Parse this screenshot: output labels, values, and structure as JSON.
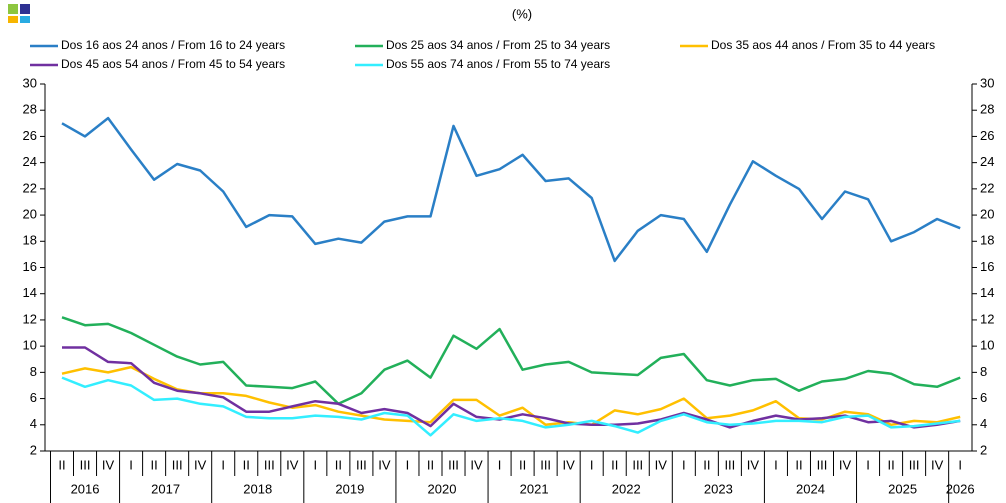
{
  "chart_data": {
    "type": "line",
    "subtitle": "(%)",
    "categories": [
      "II",
      "III",
      "IV",
      "I",
      "II",
      "III",
      "IV",
      "I",
      "II",
      "III",
      "IV",
      "I",
      "II",
      "III",
      "IV",
      "I",
      "II",
      "III",
      "IV",
      "I",
      "II",
      "III",
      "IV",
      "I",
      "II",
      "III",
      "IV",
      "I",
      "II",
      "III",
      "IV",
      "I",
      "II",
      "III",
      "IV",
      "I",
      "II",
      "III",
      "IV",
      "I"
    ],
    "years": [
      "2016",
      "2017",
      "2018",
      "2019",
      "2020",
      "2021",
      "2022",
      "2023",
      "2024",
      "2025",
      "2026"
    ],
    "series": [
      {
        "name": "Dos 16 aos 24 anos / From 16 to 24 years",
        "color": "#2a7fc6",
        "values": [
          27.0,
          26.0,
          27.4,
          25.0,
          22.7,
          23.9,
          23.4,
          21.8,
          19.1,
          20.0,
          19.9,
          17.8,
          18.2,
          17.9,
          19.5,
          19.9,
          19.9,
          26.8,
          23.0,
          23.5,
          24.6,
          22.6,
          22.8,
          21.3,
          16.5,
          18.8,
          20.0,
          19.7,
          17.2,
          20.8,
          24.1,
          23.0,
          22.0,
          19.7,
          21.8,
          21.2,
          18.0,
          18.7,
          19.7,
          19.0
        ]
      },
      {
        "name": "Dos 25 aos 34 anos / From 25 to 34 years",
        "color": "#22b05a",
        "values": [
          12.2,
          11.6,
          11.7,
          11.0,
          10.1,
          9.2,
          8.6,
          8.8,
          7.0,
          6.9,
          6.8,
          7.3,
          5.6,
          6.4,
          8.2,
          8.9,
          7.6,
          10.8,
          9.8,
          11.3,
          8.2,
          8.6,
          8.8,
          8.0,
          7.9,
          7.8,
          9.1,
          9.4,
          7.4,
          7.0,
          7.4,
          7.5,
          6.6,
          7.3,
          7.5,
          8.1,
          7.9,
          7.1,
          6.9,
          7.6
        ]
      },
      {
        "name": "Dos 35 aos 44 anos / From 35 to 44 years",
        "color": "#ffc000",
        "values": [
          7.9,
          8.3,
          8.0,
          8.4,
          7.5,
          6.7,
          6.4,
          6.4,
          6.2,
          5.7,
          5.3,
          5.5,
          5.0,
          4.7,
          4.4,
          4.3,
          4.2,
          5.9,
          5.9,
          4.7,
          5.3,
          4.0,
          4.2,
          4.0,
          5.1,
          4.8,
          5.2,
          6.0,
          4.5,
          4.7,
          5.1,
          5.8,
          4.5,
          4.4,
          5.0,
          4.8,
          4.0,
          4.3,
          4.2,
          4.6
        ]
      },
      {
        "name": "Dos 45 aos 54 anos / From 45 to 54 years",
        "color": "#7030a0",
        "values": [
          9.9,
          9.9,
          8.8,
          8.7,
          7.2,
          6.6,
          6.4,
          6.1,
          5.0,
          5.0,
          5.4,
          5.8,
          5.6,
          4.9,
          5.2,
          4.9,
          3.9,
          5.6,
          4.6,
          4.4,
          4.8,
          4.5,
          4.1,
          4.0,
          4.0,
          4.1,
          4.4,
          4.9,
          4.4,
          3.8,
          4.3,
          4.7,
          4.4,
          4.5,
          4.7,
          4.2,
          4.3,
          3.8,
          4.0,
          4.3
        ]
      },
      {
        "name": "Dos 55 aos 74 anos / From 55 to 74 years",
        "color": "#33eeff",
        "values": [
          7.6,
          6.9,
          7.4,
          7.0,
          5.9,
          6.0,
          5.6,
          5.4,
          4.6,
          4.5,
          4.5,
          4.7,
          4.6,
          4.4,
          4.9,
          4.7,
          3.2,
          4.8,
          4.3,
          4.5,
          4.3,
          3.8,
          4.0,
          4.3,
          3.9,
          3.4,
          4.3,
          4.8,
          4.2,
          4.0,
          4.1,
          4.3,
          4.3,
          4.2,
          4.6,
          4.7,
          3.8,
          3.9,
          4.1,
          4.3
        ]
      }
    ],
    "ylim": [
      2,
      30
    ],
    "yticks": [
      2,
      4,
      6,
      8,
      10,
      12,
      14,
      16,
      18,
      20,
      22,
      24,
      26,
      28,
      30
    ]
  }
}
